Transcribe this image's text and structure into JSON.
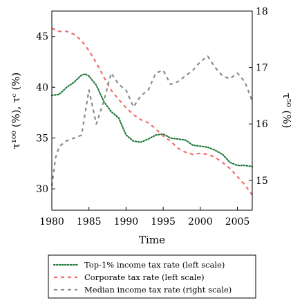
{
  "chart_data": {
    "type": "line",
    "title": "",
    "xlabel": "Time",
    "ylabel_left": "τ¹⁰⁰ (%), τᶜ (%)",
    "ylabel_right": "τ⁵⁰ (%)",
    "xlim": [
      1980,
      2007
    ],
    "ylim_left": [
      27.9,
      47.5
    ],
    "ylim_right": [
      14.47,
      18.0
    ],
    "xticks": [
      "1980",
      "1985",
      "1990",
      "1995",
      "2000",
      "2005"
    ],
    "yticks_left": [
      "30",
      "35",
      "40",
      "45"
    ],
    "yticks_right": [
      "15",
      "16",
      "17",
      "18"
    ],
    "grid": false,
    "legend_position": "below",
    "series": [
      {
        "name": "Top-1% income tax rate (left scale)",
        "axis": "left",
        "color": "#1f7a3a",
        "dash": "dotted",
        "x": [
          1980,
          1981,
          1982,
          1983,
          1984,
          1984.5,
          1985,
          1986,
          1987,
          1988,
          1989,
          1990,
          1991,
          1992,
          1993,
          1994,
          1995,
          1996,
          1997,
          1998,
          1999,
          2000,
          2001,
          2002,
          2003,
          2004,
          2005,
          2006,
          2007
        ],
        "y": [
          39.2,
          39.3,
          40.0,
          40.5,
          41.2,
          41.3,
          41.1,
          40.2,
          38.6,
          37.6,
          37.0,
          35.3,
          34.7,
          34.6,
          34.9,
          35.3,
          35.4,
          35.0,
          34.9,
          34.8,
          34.3,
          34.2,
          34.1,
          33.8,
          33.4,
          32.6,
          32.3,
          32.3,
          32.2
        ]
      },
      {
        "name": "Corporate tax rate (left scale)",
        "axis": "left",
        "color": "#f26b6b",
        "dash": "dashed",
        "x": [
          1980,
          1981,
          1982,
          1983,
          1984,
          1985,
          1986,
          1987,
          1988,
          1989,
          1990,
          1991,
          1992,
          1993,
          1994,
          1995,
          1996,
          1997,
          1998,
          1999,
          2000,
          2001,
          2002,
          2003,
          2004,
          2005,
          2006,
          2007
        ],
        "y": [
          45.8,
          45.5,
          45.5,
          45.2,
          44.6,
          43.6,
          42.4,
          41.0,
          39.7,
          38.8,
          38.0,
          37.3,
          36.8,
          36.5,
          35.9,
          35.2,
          34.7,
          34.0,
          33.6,
          33.4,
          33.5,
          33.4,
          33.1,
          32.6,
          32.0,
          31.2,
          30.4,
          29.4
        ]
      },
      {
        "name": "Median income tax rate (right scale)",
        "axis": "right",
        "color": "#8a8a8a",
        "dash": "dashed",
        "x": [
          1980,
          1980.5,
          1981,
          1982,
          1983,
          1984,
          1985,
          1986,
          1987,
          1988,
          1989,
          1990,
          1991,
          1992,
          1993,
          1994,
          1995,
          1996,
          1997,
          1998,
          1999,
          2000,
          2001,
          2002,
          2003,
          2004,
          2005,
          2006,
          2007
        ],
        "y": [
          14.9,
          15.4,
          15.6,
          15.7,
          15.75,
          15.8,
          16.6,
          16.0,
          16.4,
          16.9,
          16.7,
          16.6,
          16.3,
          16.5,
          16.6,
          16.9,
          16.95,
          16.7,
          16.75,
          16.85,
          16.95,
          17.1,
          17.2,
          17.0,
          16.85,
          16.8,
          16.9,
          16.75,
          16.4
        ]
      }
    ]
  }
}
